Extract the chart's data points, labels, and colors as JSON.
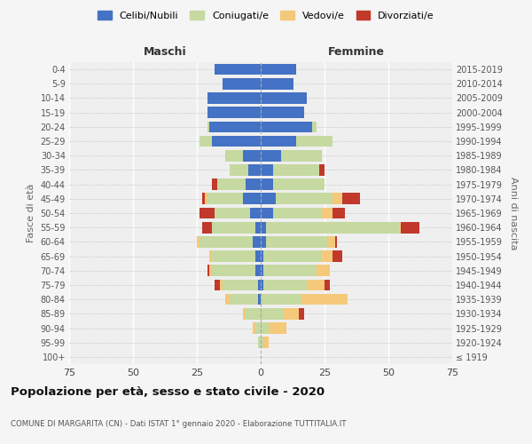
{
  "age_groups": [
    "100+",
    "95-99",
    "90-94",
    "85-89",
    "80-84",
    "75-79",
    "70-74",
    "65-69",
    "60-64",
    "55-59",
    "50-54",
    "45-49",
    "40-44",
    "35-39",
    "30-34",
    "25-29",
    "20-24",
    "15-19",
    "10-14",
    "5-9",
    "0-4"
  ],
  "birth_years": [
    "≤ 1919",
    "1920-1924",
    "1925-1929",
    "1930-1934",
    "1935-1939",
    "1940-1944",
    "1945-1949",
    "1950-1954",
    "1955-1959",
    "1960-1964",
    "1965-1969",
    "1970-1974",
    "1975-1979",
    "1980-1984",
    "1985-1989",
    "1990-1994",
    "1995-1999",
    "2000-2004",
    "2005-2009",
    "2010-2014",
    "2015-2019"
  ],
  "colors": {
    "celibi": "#4472c4",
    "coniugati": "#c5d9a0",
    "vedovi": "#f5c97a",
    "divorziati": "#c0392b"
  },
  "maschi": {
    "celibi": [
      0,
      0,
      0,
      0,
      1,
      1,
      2,
      2,
      3,
      2,
      4,
      7,
      6,
      5,
      7,
      19,
      20,
      21,
      21,
      15,
      18
    ],
    "coniugati": [
      0,
      1,
      2,
      6,
      11,
      14,
      17,
      17,
      21,
      17,
      14,
      14,
      11,
      7,
      7,
      5,
      1,
      0,
      0,
      0,
      0
    ],
    "vedovi": [
      0,
      0,
      1,
      1,
      2,
      1,
      1,
      1,
      1,
      0,
      0,
      1,
      0,
      0,
      0,
      0,
      0,
      0,
      0,
      0,
      0
    ],
    "divorziati": [
      0,
      0,
      0,
      0,
      0,
      2,
      1,
      0,
      0,
      4,
      6,
      1,
      2,
      0,
      0,
      0,
      0,
      0,
      0,
      0,
      0
    ]
  },
  "femmine": {
    "celibi": [
      0,
      0,
      0,
      0,
      0,
      1,
      1,
      1,
      2,
      2,
      5,
      6,
      5,
      5,
      8,
      14,
      20,
      17,
      18,
      13,
      14
    ],
    "coniugati": [
      0,
      1,
      3,
      9,
      16,
      17,
      21,
      23,
      24,
      52,
      19,
      22,
      20,
      18,
      16,
      14,
      2,
      0,
      0,
      0,
      0
    ],
    "vedovi": [
      0,
      2,
      7,
      6,
      18,
      7,
      5,
      4,
      3,
      1,
      4,
      4,
      0,
      0,
      0,
      0,
      0,
      0,
      0,
      0,
      0
    ],
    "divorziati": [
      0,
      0,
      0,
      2,
      0,
      2,
      0,
      4,
      1,
      7,
      5,
      7,
      0,
      2,
      0,
      0,
      0,
      0,
      0,
      0,
      0
    ]
  },
  "title": "Popolazione per età, sesso e stato civile - 2020",
  "subtitle": "COMUNE DI MARGARITA (CN) - Dati ISTAT 1° gennaio 2020 - Elaborazione TUTTITALIA.IT",
  "xlabel_left": "Maschi",
  "xlabel_right": "Femmine",
  "ylabel_left": "Fasce di età",
  "ylabel_right": "Anni di nascita",
  "xlim": 75,
  "legend_labels": [
    "Celibi/Nubili",
    "Coniugati/e",
    "Vedovi/e",
    "Divorziati/e"
  ],
  "bg_color": "#f5f5f5",
  "plot_bg": "#efefef"
}
